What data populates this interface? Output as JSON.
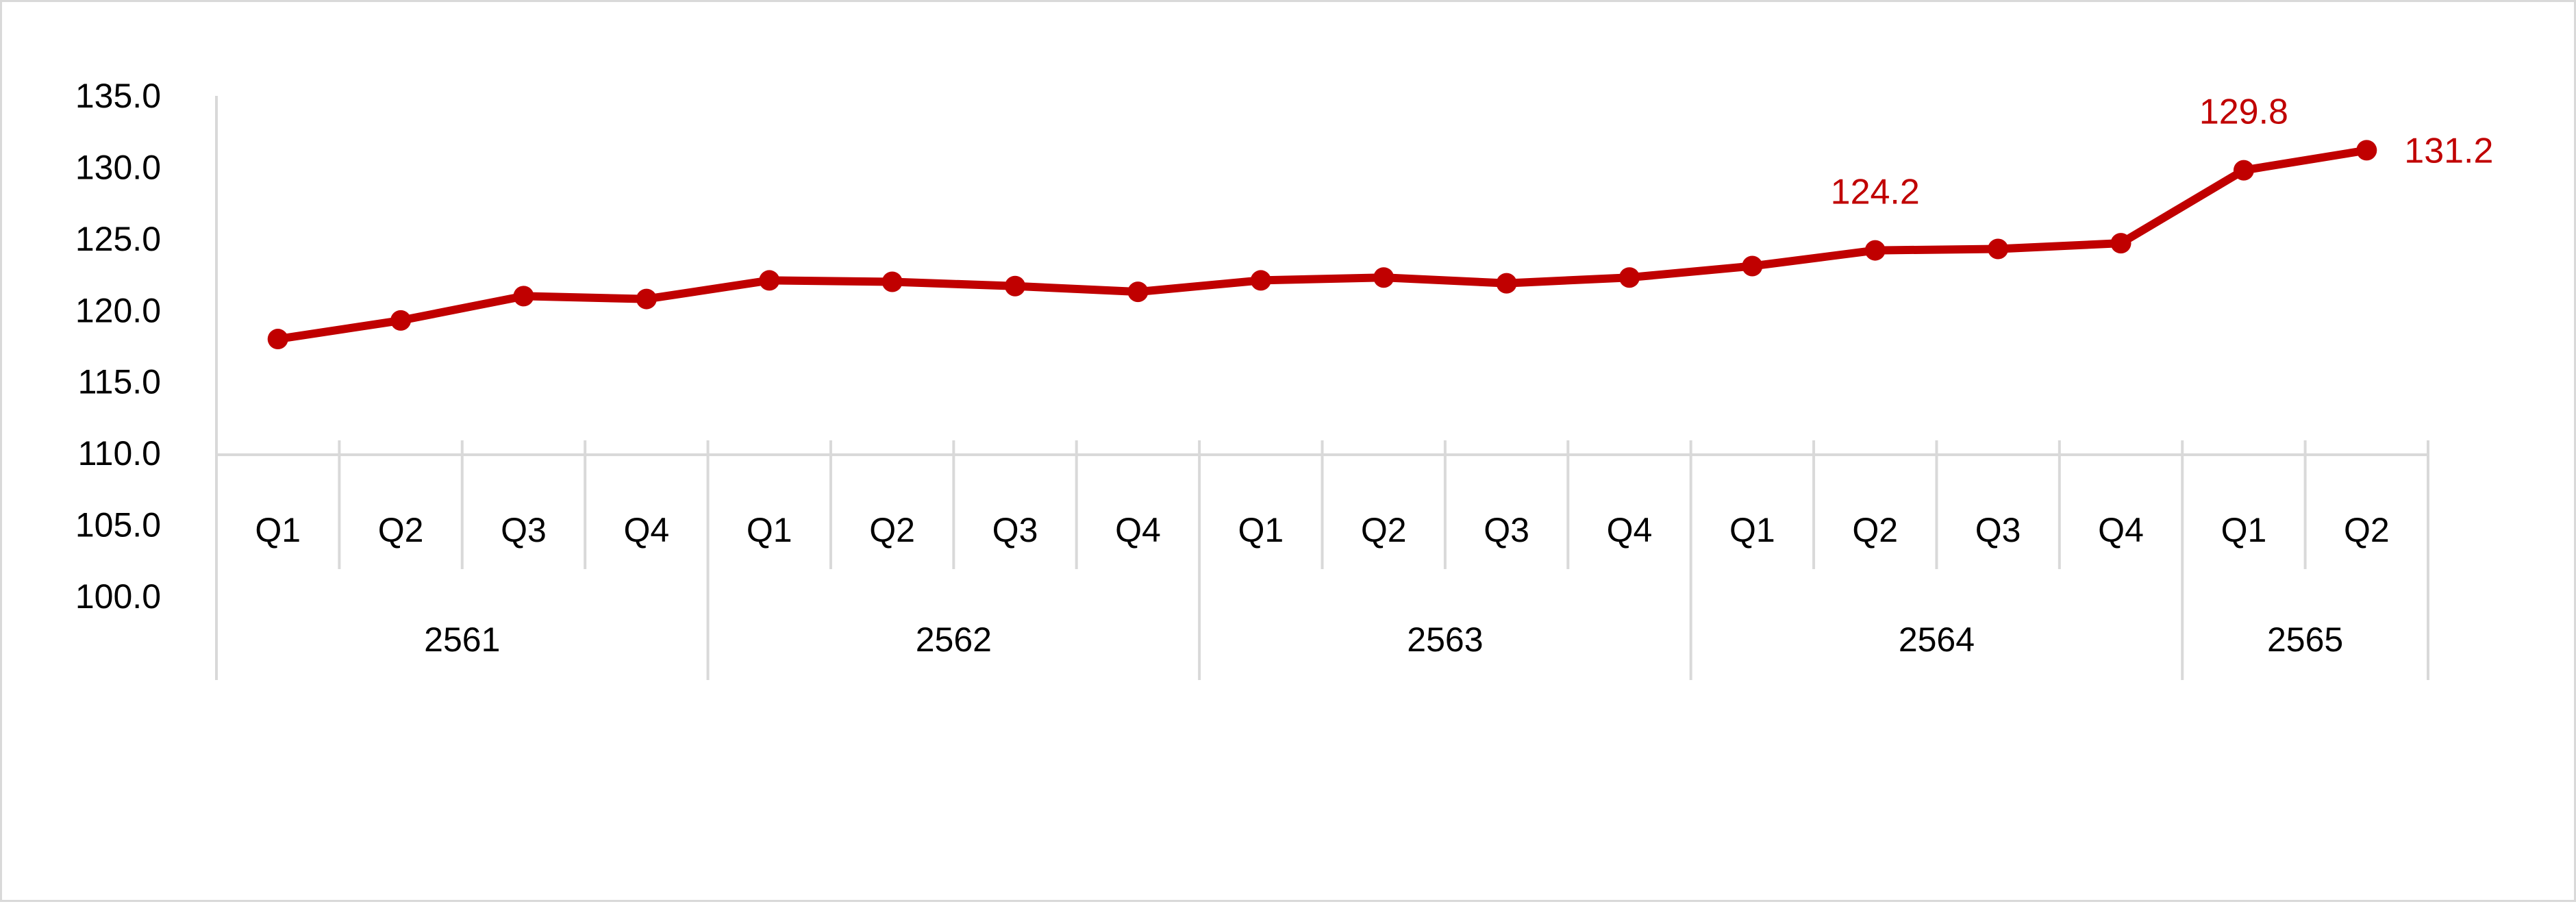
{
  "chart_data": {
    "type": "line",
    "title": "",
    "xlabel": "",
    "ylabel": "",
    "ylim": [
      100,
      135
    ],
    "yticks": [
      "100.0",
      "105.0",
      "110.0",
      "115.0",
      "120.0",
      "125.0",
      "130.0",
      "135.0"
    ],
    "grid": false,
    "legend": "none",
    "categories": [
      "Q1",
      "Q2",
      "Q3",
      "Q4",
      "Q1",
      "Q2",
      "Q3",
      "Q4",
      "Q1",
      "Q2",
      "Q3",
      "Q4",
      "Q1",
      "Q2",
      "Q3",
      "Q4",
      "Q1",
      "Q2"
    ],
    "groups": [
      {
        "label": "2561",
        "count": 4
      },
      {
        "label": "2562",
        "count": 4
      },
      {
        "label": "2563",
        "count": 4
      },
      {
        "label": "2564",
        "count": 4
      },
      {
        "label": "2565",
        "count": 2
      }
    ],
    "series": [
      {
        "values": [
          118.0,
          119.3,
          121.0,
          120.8,
          122.1,
          122.0,
          121.7,
          121.3,
          122.1,
          122.3,
          121.9,
          122.3,
          123.1,
          124.2,
          124.3,
          124.7,
          129.8,
          131.2
        ],
        "color": "#c00000"
      }
    ],
    "data_labels": [
      {
        "index": 13,
        "text": "124.2",
        "position": "above"
      },
      {
        "index": 16,
        "text": "129.8",
        "position": "above"
      },
      {
        "index": 17,
        "text": "131.2",
        "position": "right"
      }
    ],
    "axis_color": "#d9d9d9",
    "label_color": "#c00000"
  }
}
